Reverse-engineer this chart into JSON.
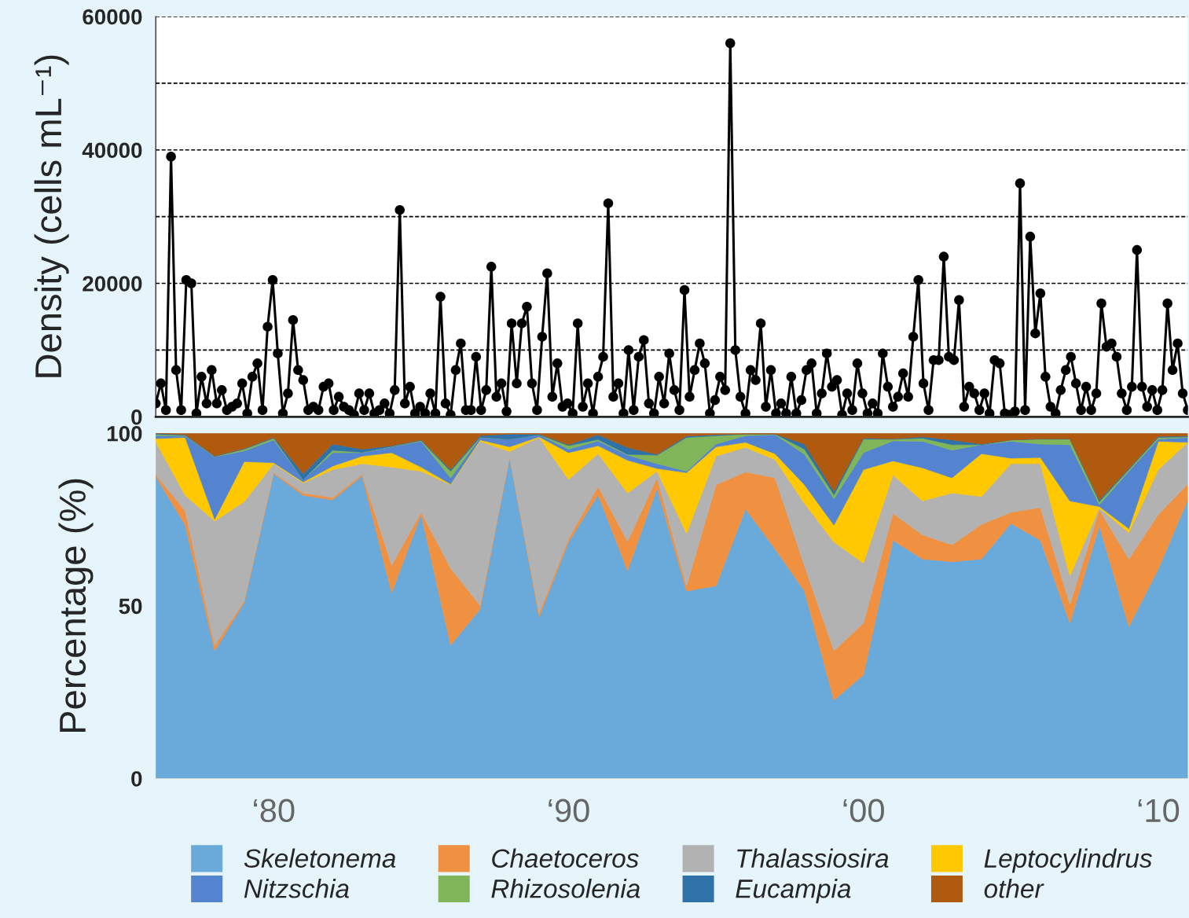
{
  "chart_data": [
    {
      "type": "line",
      "ylabel": "Density (cells mL⁻¹)",
      "marker": "circle",
      "grid": "y",
      "tick_labels": "y",
      "legend": false,
      "categories": [
        null,
        null,
        null,
        null,
        null,
        null,
        null,
        null,
        null,
        null,
        null,
        null,
        null,
        null,
        null,
        null,
        null,
        null,
        null,
        null,
        null,
        null,
        null,
        null,
        null,
        null,
        null,
        null,
        null,
        null,
        null,
        null,
        null,
        null,
        null,
        null,
        null,
        null,
        null,
        null,
        null,
        null,
        null,
        null,
        null,
        null,
        null,
        null,
        null,
        null,
        null,
        null,
        null,
        null,
        null,
        null,
        null,
        null,
        null,
        null,
        null,
        null,
        null,
        null,
        null,
        null,
        null,
        null,
        null,
        null,
        null,
        null,
        null,
        null,
        null,
        null,
        null,
        null,
        null,
        null,
        null,
        null,
        null,
        null,
        null,
        null,
        null,
        null,
        null,
        null,
        null,
        null,
        null,
        null,
        null,
        null,
        null,
        null,
        null,
        null,
        null,
        null,
        null,
        null,
        null,
        null,
        null,
        null,
        null,
        null,
        null,
        null,
        null,
        null,
        null,
        null,
        null,
        null,
        null,
        null,
        null,
        null,
        null,
        null,
        null,
        null,
        null,
        null,
        null,
        null,
        null,
        null,
        null,
        null,
        null,
        null,
        null,
        null,
        null,
        null,
        null,
        null,
        null,
        null,
        null,
        null,
        null,
        null,
        null,
        null,
        null,
        null,
        null,
        null,
        null,
        null,
        null,
        null,
        null,
        null,
        null,
        null,
        null,
        null,
        null,
        null,
        null,
        null,
        null,
        null,
        null,
        null,
        null,
        null,
        null,
        null,
        null,
        null,
        null,
        null,
        null,
        null,
        null,
        null,
        null,
        null,
        null,
        null,
        null,
        null,
        null,
        null,
        null,
        null,
        null,
        null,
        null,
        null,
        null,
        null,
        null,
        null,
        null,
        null
      ],
      "ylim": [
        0,
        60000
      ],
      "yticks": [
        0,
        {
          "value": 10000,
          "label": null
        },
        20000,
        {
          "value": 30000,
          "label": null
        },
        40000,
        {
          "value": 50000,
          "label": null
        },
        60000
      ],
      "series": [
        {
          "color": "#000000",
          "values": [
            2000,
            5000,
            1000,
            39000,
            7000,
            1000,
            20500,
            20000,
            500,
            6000,
            2000,
            7000,
            2000,
            4000,
            1000,
            1500,
            2000,
            5000,
            500,
            6000,
            8000,
            1000,
            13500,
            20500,
            9500,
            500,
            3500,
            14500,
            7000,
            5500,
            1000,
            1500,
            1000,
            4500,
            5000,
            1000,
            3000,
            1500,
            1000,
            300,
            3500,
            1000,
            3500,
            500,
            1000,
            2000,
            500,
            4000,
            31000,
            2000,
            4500,
            500,
            1500,
            500,
            3500,
            500,
            18000,
            2000,
            300,
            7000,
            11000,
            1000,
            1000,
            9000,
            1000,
            4000,
            22500,
            3000,
            5000,
            800,
            14000,
            5000,
            14000,
            16500,
            5000,
            1000,
            12000,
            21500,
            3000,
            8000,
            1500,
            2000,
            500,
            14000,
            1500,
            5000,
            500,
            6000,
            9000,
            32000,
            3000,
            5000,
            500,
            10000,
            1000,
            9000,
            11500,
            2000,
            500,
            6000,
            2000,
            9500,
            4000,
            1000,
            19000,
            3000,
            7000,
            11000,
            8000,
            500,
            2500,
            6000,
            4000,
            56000,
            10000,
            3000,
            500,
            7000,
            5500,
            14000,
            1500,
            7000,
            500,
            2000,
            500,
            6000,
            500,
            2500,
            7000,
            8000,
            500,
            3500,
            9500,
            4500,
            5500,
            300,
            3500,
            1000,
            8000,
            3500,
            500,
            2000,
            500,
            9500,
            4500,
            1500,
            3000,
            6500,
            3000,
            12000,
            20500,
            5000,
            1000,
            8500,
            8500,
            24000,
            9000,
            8500,
            17500,
            1500,
            4500,
            3500,
            1000,
            3500,
            500,
            8500,
            8000,
            500,
            300,
            800,
            35000,
            1000,
            27000,
            12500,
            18500,
            6000,
            1500,
            500,
            4000,
            7000,
            9000,
            5000,
            1000,
            4500,
            1000,
            3500,
            17000,
            10500,
            11000,
            9000,
            3500,
            1000,
            4500,
            25000,
            4500,
            1500,
            4000,
            1000,
            4000,
            17000,
            7000,
            11000,
            3500,
            1000
          ]
        }
      ]
    },
    {
      "type": "area",
      "stacked": true,
      "ylabel": "Percentage (%)",
      "legend": "bottom",
      "grid": false,
      "categories": [
        null,
        null,
        null,
        null,
        "‘80",
        null,
        null,
        null,
        null,
        null,
        null,
        null,
        null,
        null,
        "‘90",
        null,
        null,
        null,
        null,
        null,
        null,
        null,
        null,
        null,
        "‘00",
        null,
        null,
        null,
        null,
        null,
        null,
        null,
        null,
        null,
        "‘10",
        null
      ],
      "ylim": [
        0,
        100
      ],
      "yticks": [
        0,
        50,
        100
      ],
      "series": [
        {
          "name": "Skeletonema",
          "color": "#6aaadb",
          "values": [
            87.5,
            73.4,
            37,
            50.9,
            88.3,
            82,
            80.7,
            87.6,
            53.8,
            76.5,
            38.6,
            49.1,
            93,
            46.8,
            68.5,
            82.2,
            60.2,
            84.1,
            54.3,
            55.8,
            78.1,
            66.5,
            54.3,
            22.7,
            30,
            69,
            63.6,
            62.8,
            63.6,
            73.9,
            69,
            45,
            73.2,
            44,
            60.7,
            80.7
          ]
        },
        {
          "name": "Chaetoceros",
          "color": "#f09142",
          "values": [
            0.5,
            4.1,
            1.6,
            0.5,
            0.3,
            0.7,
            0.7,
            0.5,
            8,
            0.6,
            22.3,
            1,
            0,
            1.1,
            1,
            2.4,
            8.5,
            3,
            1.5,
            29.3,
            10.7,
            20.6,
            7.3,
            14.3,
            15,
            7.8,
            7,
            4.9,
            10,
            3.2,
            9.5,
            5.4,
            4.6,
            19.6,
            15.8,
            4.6
          ]
        },
        {
          "name": "Thalassiosira",
          "color": "#b2b2b2",
          "values": [
            9.5,
            4.5,
            36,
            28.8,
            2.6,
            2.9,
            8.1,
            3.1,
            28.4,
            11.9,
            24.2,
            47.6,
            1.7,
            50.9,
            17.1,
            9.5,
            14,
            1.9,
            15.2,
            8.3,
            7.1,
            5.3,
            18.1,
            31.5,
            17.4,
            11.1,
            9.8,
            15,
            8.1,
            14.1,
            12.7,
            8.3,
            0.5,
            7.6,
            13,
            12.1
          ]
        },
        {
          "name": "Leptocylindrus",
          "color": "#ffc800",
          "values": [
            1,
            16.8,
            0.5,
            11.6,
            0.3,
            0.3,
            1,
            2.2,
            4.2,
            1.2,
            0.2,
            0.4,
            1.4,
            0.2,
            7.8,
            2.3,
            9.5,
            0.8,
            17.6,
            2.7,
            1.5,
            1.7,
            5.4,
            4.9,
            27.1,
            4.1,
            9.6,
            4.4,
            12.4,
            1.6,
            1.8,
            21.7,
            0.5,
            1.2,
            8.2,
            0
          ]
        },
        {
          "name": "Nitzschia",
          "color": "#5484cf",
          "values": [
            0.8,
            0.4,
            18.1,
            3.1,
            6.6,
            0.7,
            3.9,
            1,
            1.7,
            7.5,
            1.8,
            0.7,
            2.2,
            0.6,
            1,
            1.4,
            1.5,
            1.4,
            0.4,
            0.8,
            1.9,
            5.5,
            8.8,
            7.6,
            4.9,
            5.8,
            7.7,
            8,
            2.6,
            4.9,
            3.9,
            16.3,
            0.5,
            16.6,
            0.6,
            1.4
          ]
        },
        {
          "name": "Rhizosolenia",
          "color": "#80b55a",
          "values": [
            0.4,
            0.2,
            0.1,
            0.5,
            0.5,
            0,
            0.7,
            0.1,
            0.1,
            0.2,
            1.9,
            0.1,
            0,
            0,
            1,
            0.4,
            0.2,
            2.5,
            9.8,
            2.4,
            0.5,
            0.2,
            1.5,
            1.2,
            3.9,
            0.5,
            0.9,
            1.6,
            0,
            0.4,
            1.4,
            1.6,
            0.9,
            0.5,
            0.5,
            0.2
          ]
        },
        {
          "name": "Eucampia",
          "color": "#2e72a8",
          "values": [
            0.3,
            0.2,
            0.1,
            0.2,
            0.2,
            1.7,
            1.8,
            0.9,
            0.2,
            0.2,
            0.5,
            0.4,
            1.5,
            0.2,
            0.3,
            1.4,
            2,
            0.2,
            0.4,
            0.3,
            0,
            0,
            1.5,
            1,
            0.3,
            0.1,
            0.4,
            1.4,
            0.2,
            0,
            0.1,
            0.1,
            0.5,
            0.3,
            0.3,
            0.2
          ]
        },
        {
          "name": "other",
          "color": "#b05a10",
          "values": [
            0,
            0.4,
            6.6,
            4.4,
            1.2,
            11.7,
            3.1,
            4.6,
            3.6,
            1.9,
            10.5,
            0.7,
            0.2,
            0.2,
            3.3,
            0.4,
            4.1,
            6.1,
            0.8,
            0.4,
            0.2,
            0.2,
            3.1,
            16.8,
            1.4,
            1.6,
            1,
            1.9,
            3.1,
            1.9,
            1.6,
            1.6,
            19.3,
            10.2,
            0.9,
            0.8
          ]
        }
      ]
    }
  ]
}
